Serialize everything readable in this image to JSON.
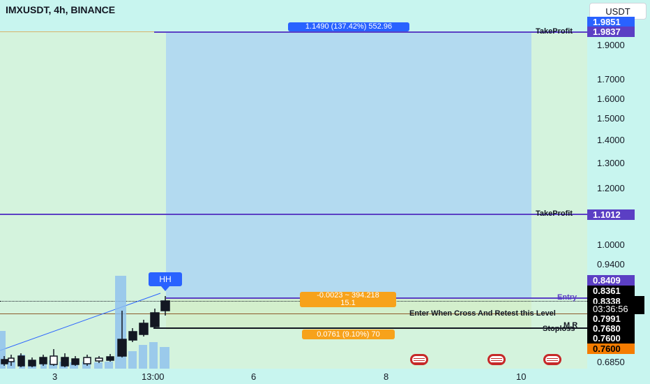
{
  "header": {
    "symbol_title": "IMXUSDT, 4h, BINANCE"
  },
  "currency_button": "USDT",
  "price_axis": {
    "ticks": [
      "1.9000",
      "1.7000",
      "1.6000",
      "1.5000",
      "1.4000",
      "1.3000",
      "1.2000",
      "1.0000",
      "0.9400",
      "0.6850"
    ],
    "tags": [
      {
        "label": "1.9851",
        "color": "#2962ff",
        "text_color": "#ffffff"
      },
      {
        "label": "1.9837",
        "color": "#5b3fc4",
        "text_color": "#ffffff"
      },
      {
        "label": "1.1012",
        "color": "#5b3fc4",
        "text_color": "#ffffff"
      },
      {
        "label": "0.8409",
        "color": "#5b3fc4",
        "text_color": "#ffffff"
      },
      {
        "label": "0.8361",
        "color": "#000000",
        "text_color": "#ffffff"
      },
      {
        "label": "0.8338",
        "color": "#000000",
        "text_color": "#ffffff"
      },
      {
        "label": "03:36:56",
        "color": "#000000",
        "text_color": "#ffffff"
      },
      {
        "label": "0.7991",
        "color": "#000000",
        "text_color": "#ffffff"
      },
      {
        "label": "0.7680",
        "color": "#000000",
        "text_color": "#ffffff"
      },
      {
        "label": "0.7600",
        "color": "#000000",
        "text_color": "#ffffff"
      },
      {
        "label": "0.7600",
        "color": "#f57c00",
        "text_color": "#000000"
      }
    ]
  },
  "time_axis": {
    "labels": [
      "3",
      "13:00",
      "6",
      "8",
      "10"
    ]
  },
  "lines": {
    "takeprofit1": "TakeProfit",
    "takeprofit2": "TakeProfit",
    "entry": "Entry",
    "enter_when": "Enter When Cross And Retest this Level",
    "mr": "M.R",
    "stoploss": "Stoploss"
  },
  "position_tool": {
    "target_pill": "1.1490 (137.42%) 552.96",
    "center_pill_line1": "-0.0023 ~ 394.218",
    "center_pill_line2": "15.1",
    "stop_pill": "0.0761 (9.10%) 70"
  },
  "marker": {
    "label": "HH"
  },
  "colors": {
    "background": "#c8f5ef",
    "profit_zone": "#a9d4f5",
    "loss_zone": "#d8efc9",
    "takeprofit_line": "#5b3fc4",
    "pill_orange": "#f7a21b",
    "pill_blue": "#2962ff"
  }
}
